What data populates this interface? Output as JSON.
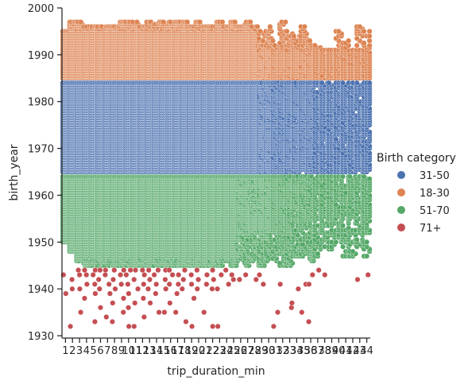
{
  "chart_data": {
    "type": "scatter",
    "subtype": "strip",
    "xlabel": "trip_duration_min",
    "ylabel": "birth_year",
    "categories": [
      1,
      2,
      3,
      4,
      5,
      6,
      7,
      8,
      9,
      10,
      11,
      12,
      13,
      14,
      15,
      16,
      17,
      18,
      19,
      20,
      21,
      22,
      23,
      24,
      25,
      26,
      27,
      28,
      29,
      30,
      31,
      32,
      33,
      34,
      35,
      36,
      37,
      38,
      39,
      40,
      41,
      42,
      43,
      44
    ],
    "ylim": [
      1929.5,
      2000
    ],
    "yticks": [
      1930,
      1940,
      1950,
      1960,
      1970,
      1980,
      1990,
      2000
    ],
    "legend_title": "Birth category",
    "legend_position": "right",
    "series": [
      {
        "name": "31-50",
        "color": "#4c72b0",
        "band": [
          1965,
          1984
        ],
        "lowest": [
          1965,
          1965,
          1965,
          1965,
          1965,
          1965,
          1965,
          1965,
          1965,
          1965,
          1965,
          1965,
          1965,
          1965,
          1965,
          1965,
          1965,
          1965,
          1965,
          1965,
          1965,
          1965,
          1965,
          1965,
          1965,
          1965,
          1965,
          1965,
          1965,
          1965,
          1965,
          1965,
          1965,
          1965,
          1965,
          1965,
          1965,
          1965,
          1965,
          1965,
          1965,
          1965,
          1965,
          1965
        ]
      },
      {
        "name": "18-30",
        "color": "#dd8452",
        "band": [
          1985,
          1997
        ],
        "highest": [
          1995,
          1997,
          1997,
          1996,
          1996,
          1996,
          1996,
          1996,
          1997,
          1997,
          1997,
          1996,
          1997,
          1997,
          1997,
          1997,
          1997,
          1997,
          1996,
          1997,
          1996,
          1996,
          1997,
          1996,
          1997,
          1996,
          1997,
          1996,
          1995,
          1996,
          1993,
          1997,
          1995,
          1994,
          1996,
          1993,
          1992,
          1991,
          1991,
          1995,
          1993,
          1991,
          1996,
          1995
        ]
      },
      {
        "name": "51-70",
        "color": "#55a868",
        "band": [
          1945,
          1964
        ],
        "lowest": [
          1950,
          1948,
          1946,
          1945,
          1945,
          1945,
          1945,
          1945,
          1945,
          1945,
          1945,
          1945,
          1945,
          1945,
          1945,
          1945,
          1945,
          1945,
          1945,
          1945,
          1945,
          1945,
          1945,
          1946,
          1945,
          1946,
          1945,
          1946,
          1945,
          1946,
          1946,
          1945,
          1945,
          1947,
          1947,
          1946,
          1947,
          1949,
          1948,
          1950,
          1947,
          1947,
          1949,
          1947
        ]
      },
      {
        "name": "71+",
        "color": "#c44e52",
        "points": [
          [
            1,
            1939
          ],
          [
            1,
            1943
          ],
          [
            2,
            1932
          ],
          [
            2,
            1940
          ],
          [
            2,
            1942
          ],
          [
            3,
            1935
          ],
          [
            3,
            1940
          ],
          [
            3,
            1943
          ],
          [
            3,
            1944
          ],
          [
            4,
            1938
          ],
          [
            4,
            1941
          ],
          [
            4,
            1943
          ],
          [
            4,
            1944
          ],
          [
            5,
            1933
          ],
          [
            5,
            1939
          ],
          [
            5,
            1941
          ],
          [
            5,
            1943
          ],
          [
            5,
            1944
          ],
          [
            6,
            1936
          ],
          [
            6,
            1940
          ],
          [
            6,
            1942
          ],
          [
            6,
            1944
          ],
          [
            7,
            1934
          ],
          [
            7,
            1939
          ],
          [
            7,
            1941
          ],
          [
            7,
            1943
          ],
          [
            7,
            1944
          ],
          [
            8,
            1933
          ],
          [
            8,
            1937
          ],
          [
            8,
            1940
          ],
          [
            8,
            1942
          ],
          [
            8,
            1944
          ],
          [
            9,
            1935
          ],
          [
            9,
            1938
          ],
          [
            9,
            1941
          ],
          [
            9,
            1943
          ],
          [
            9,
            1944
          ],
          [
            10,
            1932
          ],
          [
            10,
            1936
          ],
          [
            10,
            1939
          ],
          [
            10,
            1941
          ],
          [
            10,
            1943
          ],
          [
            10,
            1944
          ],
          [
            11,
            1932
          ],
          [
            11,
            1937
          ],
          [
            11,
            1940
          ],
          [
            11,
            1942
          ],
          [
            11,
            1944
          ],
          [
            12,
            1934
          ],
          [
            12,
            1938
          ],
          [
            12,
            1941
          ],
          [
            12,
            1943
          ],
          [
            12,
            1944
          ],
          [
            13,
            1937
          ],
          [
            13,
            1940
          ],
          [
            13,
            1942
          ],
          [
            13,
            1944
          ],
          [
            14,
            1935
          ],
          [
            14,
            1939
          ],
          [
            14,
            1941
          ],
          [
            14,
            1943
          ],
          [
            14,
            1944
          ],
          [
            15,
            1935
          ],
          [
            15,
            1940
          ],
          [
            15,
            1942
          ],
          [
            15,
            1944
          ],
          [
            16,
            1937
          ],
          [
            16,
            1941
          ],
          [
            16,
            1943
          ],
          [
            16,
            1944
          ],
          [
            17,
            1935
          ],
          [
            17,
            1939
          ],
          [
            17,
            1941
          ],
          [
            17,
            1943
          ],
          [
            18,
            1933
          ],
          [
            18,
            1940
          ],
          [
            18,
            1942
          ],
          [
            18,
            1944
          ],
          [
            19,
            1932
          ],
          [
            19,
            1938
          ],
          [
            19,
            1941
          ],
          [
            19,
            1943
          ],
          [
            20,
            1940
          ],
          [
            20,
            1942
          ],
          [
            20,
            1944
          ],
          [
            21,
            1935
          ],
          [
            21,
            1941
          ],
          [
            21,
            1943
          ],
          [
            22,
            1932
          ],
          [
            22,
            1940
          ],
          [
            22,
            1942
          ],
          [
            22,
            1944
          ],
          [
            23,
            1932
          ],
          [
            23,
            1940
          ],
          [
            23,
            1943
          ],
          [
            24,
            1941
          ],
          [
            24,
            1944
          ],
          [
            25,
            1942
          ],
          [
            25,
            1943
          ],
          [
            26,
            1942
          ],
          [
            27,
            1943
          ],
          [
            28,
            1942
          ],
          [
            29,
            1941
          ],
          [
            29,
            1943
          ],
          [
            31,
            1932
          ],
          [
            31,
            1935
          ],
          [
            32,
            1941
          ],
          [
            33,
            1936
          ],
          [
            33,
            1937
          ],
          [
            34,
            1940
          ],
          [
            35,
            1935
          ],
          [
            35,
            1941
          ],
          [
            36,
            1933
          ],
          [
            36,
            1941
          ],
          [
            36,
            1943
          ],
          [
            37,
            1944
          ],
          [
            38,
            1943
          ],
          [
            43,
            1942
          ],
          [
            45,
            1943
          ]
        ]
      }
    ]
  }
}
